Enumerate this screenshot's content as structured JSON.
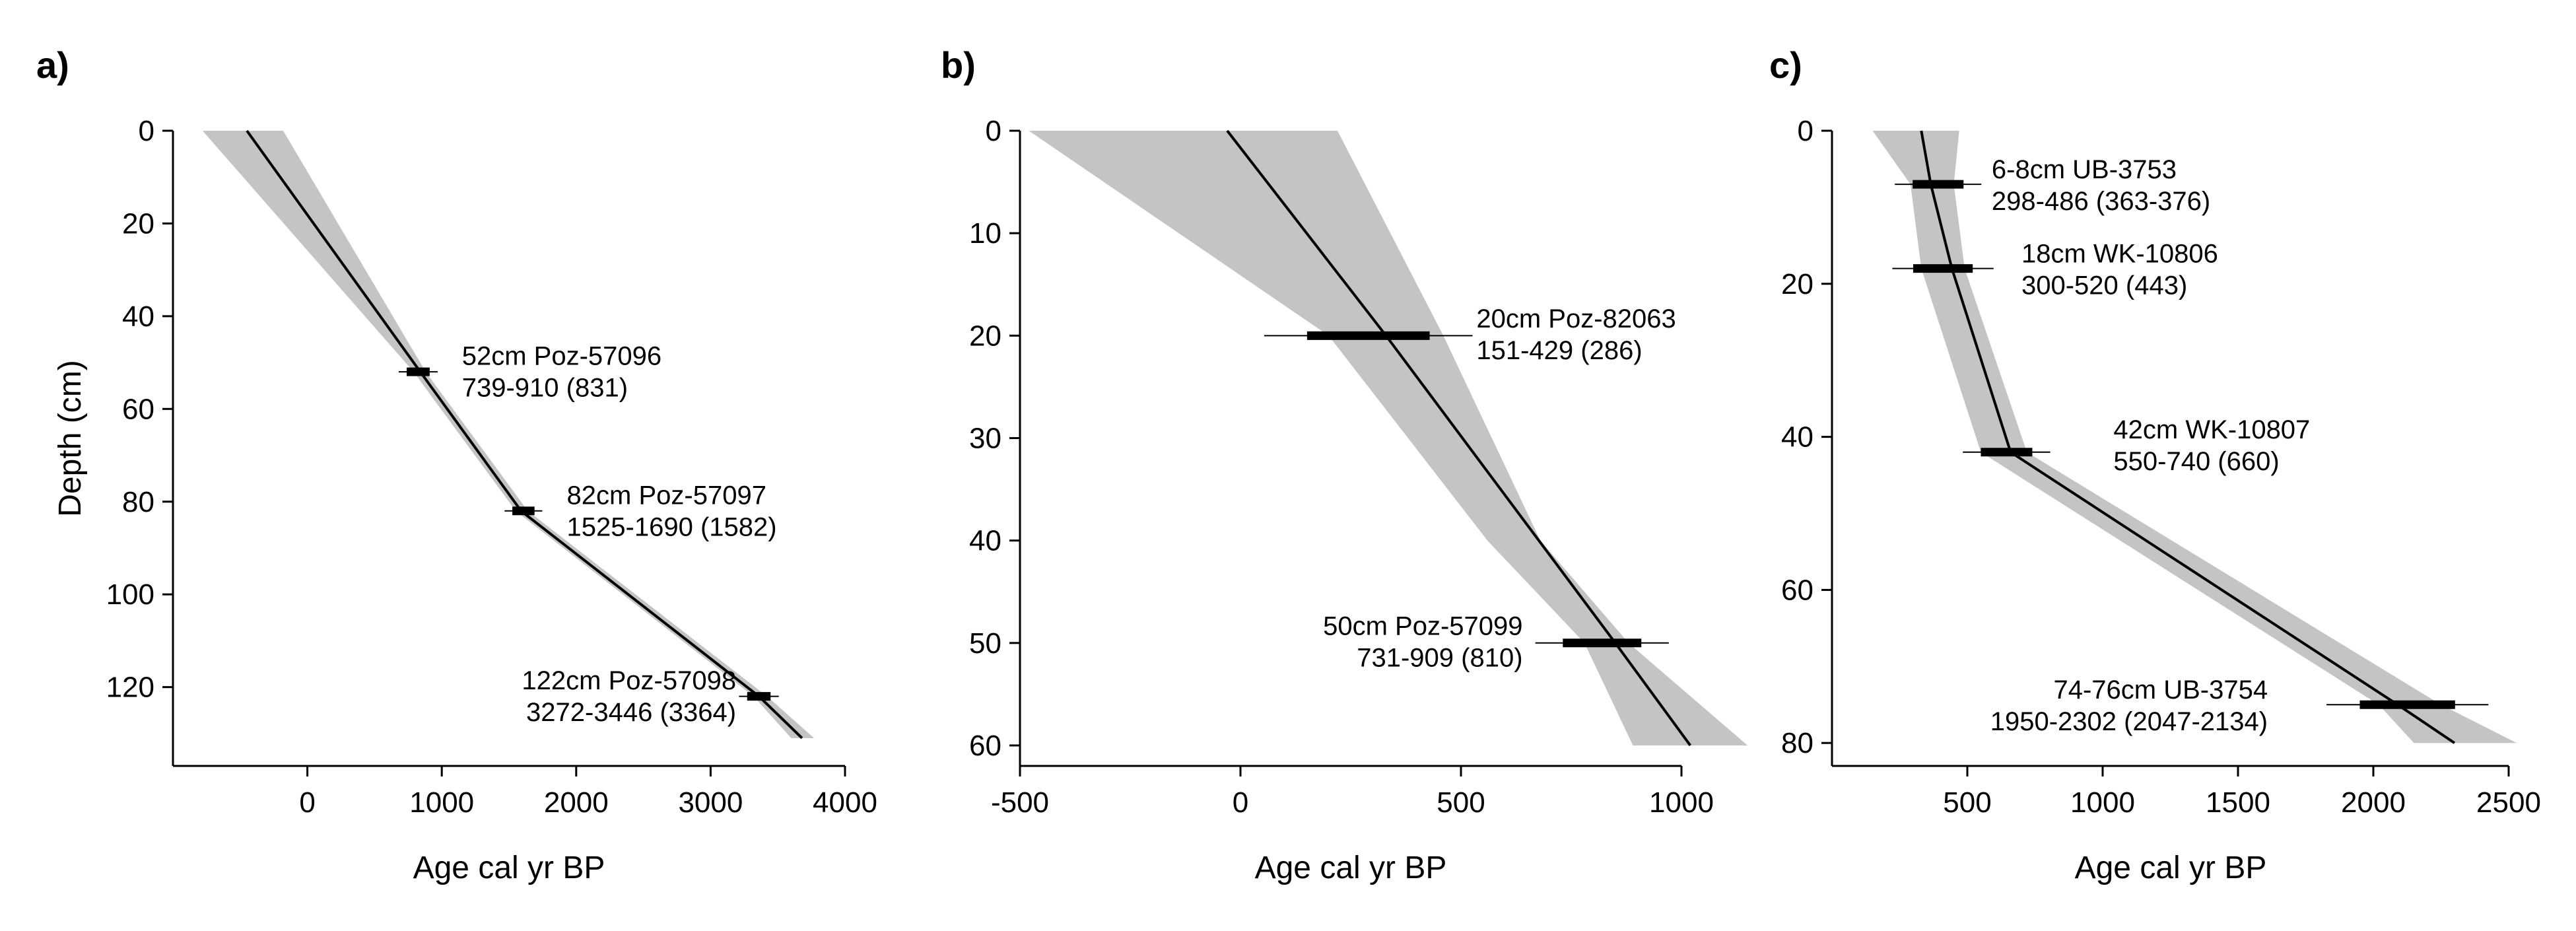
{
  "chart_data": [
    {
      "type": "line",
      "panel_label": "a)",
      "xlabel": "Age cal yr BP",
      "ylabel": "Depth (cm)",
      "xlim": [
        -1000,
        4000
      ],
      "ylim": [
        0,
        137
      ],
      "y_inverted": true,
      "xticks": [
        0,
        1000,
        2000,
        3000,
        4000
      ],
      "yticks": [
        0,
        20,
        40,
        60,
        80,
        100,
        120
      ],
      "model_line": {
        "depth": [
          0,
          52,
          82,
          122,
          131
        ],
        "age": [
          -450,
          840,
          1590,
          3360,
          3680
        ]
      },
      "confidence_band": {
        "depth": [
          0,
          52,
          82,
          122,
          131
        ],
        "min_age": [
          -780,
          790,
          1550,
          3320,
          3600
        ],
        "max_age": [
          -180,
          880,
          1640,
          3420,
          3770
        ]
      },
      "dates": [
        {
          "depth": 52,
          "age_min": 739,
          "age_max": 910,
          "median": 831,
          "label_line1": "52cm Poz-57096",
          "label_line2": "739-910 (831)",
          "label_align": "start",
          "label_age": 1150,
          "label_depth": 50.5
        },
        {
          "depth": 82,
          "age_min": 1525,
          "age_max": 1690,
          "median": 1582,
          "label_line1": "82cm Poz-57097",
          "label_line2": "1525-1690 (1582)",
          "label_align": "start",
          "label_age": 1930,
          "label_depth": 80.5
        },
        {
          "depth": 122,
          "age_min": 3272,
          "age_max": 3446,
          "median": 3364,
          "label_line1": "122cm Poz-57098",
          "label_line2": "3272-3446 (3364)",
          "label_align": "end",
          "label_age": 3190,
          "label_depth": 120.5
        }
      ]
    },
    {
      "type": "line",
      "panel_label": "b)",
      "xlabel": "Age cal yr BP",
      "ylabel": "",
      "xlim": [
        -500,
        1000
      ],
      "ylim": [
        0,
        62
      ],
      "y_inverted": true,
      "xticks": [
        -500,
        0,
        500,
        1000
      ],
      "yticks": [
        0,
        10,
        20,
        30,
        40,
        50,
        60
      ],
      "model_line": {
        "depth": [
          0,
          20,
          50,
          60
        ],
        "age": [
          -30,
          330,
          850,
          1020
        ]
      },
      "confidence_band": {
        "depth": [
          0,
          20,
          40,
          50,
          60
        ],
        "min_age": [
          -480,
          200,
          560,
          780,
          890
        ],
        "max_age": [
          220,
          460,
          680,
          880,
          1150
        ]
      },
      "dates": [
        {
          "depth": 20,
          "age_min": 151,
          "age_max": 429,
          "median": 286,
          "label_line1": "20cm Poz-82063",
          "label_line2": "151-429 (286)",
          "label_align": "start",
          "label_age": 535,
          "label_depth": 19.2
        },
        {
          "depth": 50,
          "age_min": 731,
          "age_max": 909,
          "median": 810,
          "label_line1": "50cm Poz-57099",
          "label_line2": "731-909 (810)",
          "label_align": "end",
          "label_age": 640,
          "label_depth": 49.2
        }
      ]
    },
    {
      "type": "line",
      "panel_label": "c)",
      "xlabel": "Age cal yr BP",
      "ylabel": "",
      "xlim": [
        0,
        2500
      ],
      "ylim": [
        0,
        83
      ],
      "y_inverted": true,
      "xticks": [
        500,
        1000,
        1500,
        2000,
        2500
      ],
      "yticks": [
        0,
        20,
        40,
        60,
        80
      ],
      "model_line": {
        "depth": [
          0,
          7,
          18,
          42,
          75,
          80
        ],
        "age": [
          330,
          365,
          443,
          660,
          2090,
          2300
        ]
      },
      "confidence_band": {
        "depth": [
          0,
          7,
          18,
          42,
          75,
          80
        ],
        "min_age": [
          150,
          290,
          330,
          550,
          2020,
          2150
        ],
        "max_age": [
          470,
          450,
          490,
          720,
          2250,
          2530
        ]
      },
      "dates": [
        {
          "depth": 7,
          "age_min": 298,
          "age_max": 486,
          "median": 370,
          "label_line1": "6-8cm UB-3753",
          "label_line2": "298-486 (363-376)",
          "label_align": "start",
          "label_age": 590,
          "label_depth": 6.2
        },
        {
          "depth": 18,
          "age_min": 300,
          "age_max": 520,
          "median": 443,
          "label_line1": "18cm WK-10806",
          "label_line2": "300-520 (443)",
          "label_align": "start",
          "label_age": 700,
          "label_depth": 17.2
        },
        {
          "depth": 42,
          "age_min": 550,
          "age_max": 740,
          "median": 660,
          "label_line1": "42cm WK-10807",
          "label_line2": "550-740 (660)",
          "label_align": "start",
          "label_age": 1040,
          "label_depth": 40.2
        },
        {
          "depth": 75,
          "age_min": 1950,
          "age_max": 2302,
          "median": 2090,
          "label_line1": "74-76cm UB-3754",
          "label_line2": "1950-2302 (2047-2134)",
          "label_align": "end",
          "label_age": 1610,
          "label_depth": 74.2
        }
      ]
    }
  ]
}
